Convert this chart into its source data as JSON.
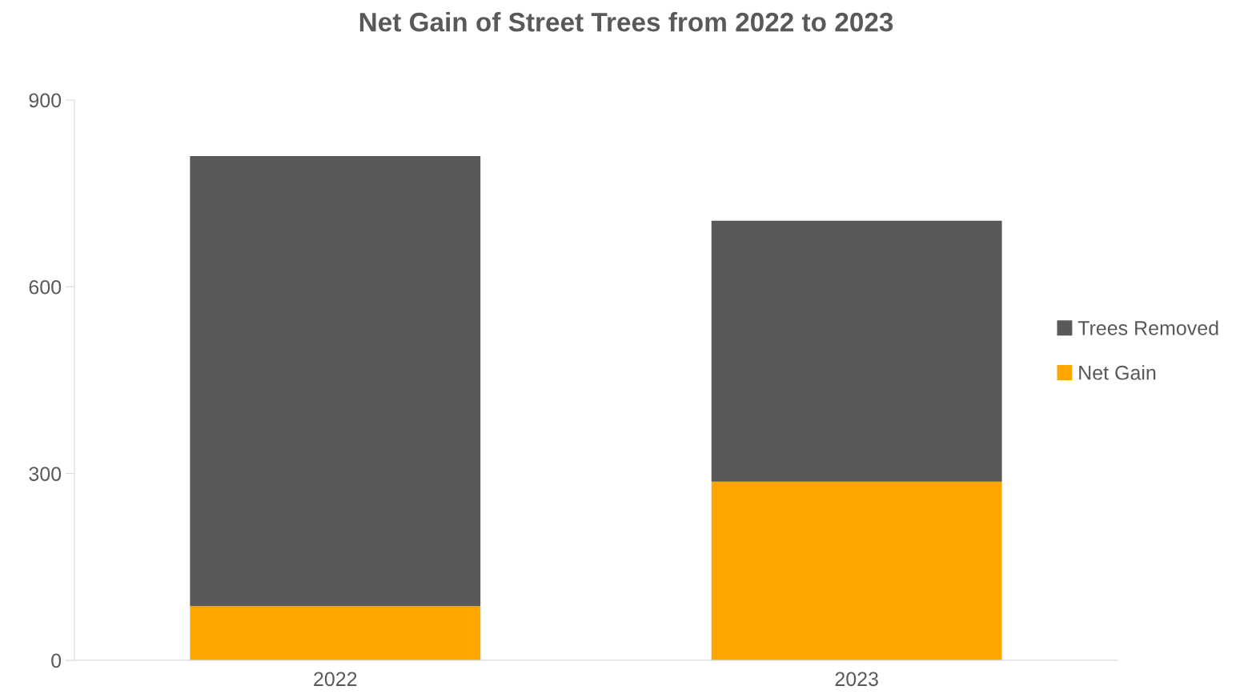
{
  "chart_data": {
    "type": "bar",
    "title": "Net Gain of Street Trees from 2022 to 2023",
    "categories": [
      "2022",
      "2023"
    ],
    "stacked": true,
    "series": [
      {
        "name": "Net Gain",
        "color": "#ffa500",
        "values": [
          87,
          287
        ]
      },
      {
        "name": "Trees Removed",
        "color": "#595959",
        "values": [
          723,
          419
        ]
      }
    ],
    "ylim": [
      0,
      900
    ],
    "yticks": [
      0,
      300,
      600,
      900
    ],
    "grid": false,
    "legend": "right"
  }
}
